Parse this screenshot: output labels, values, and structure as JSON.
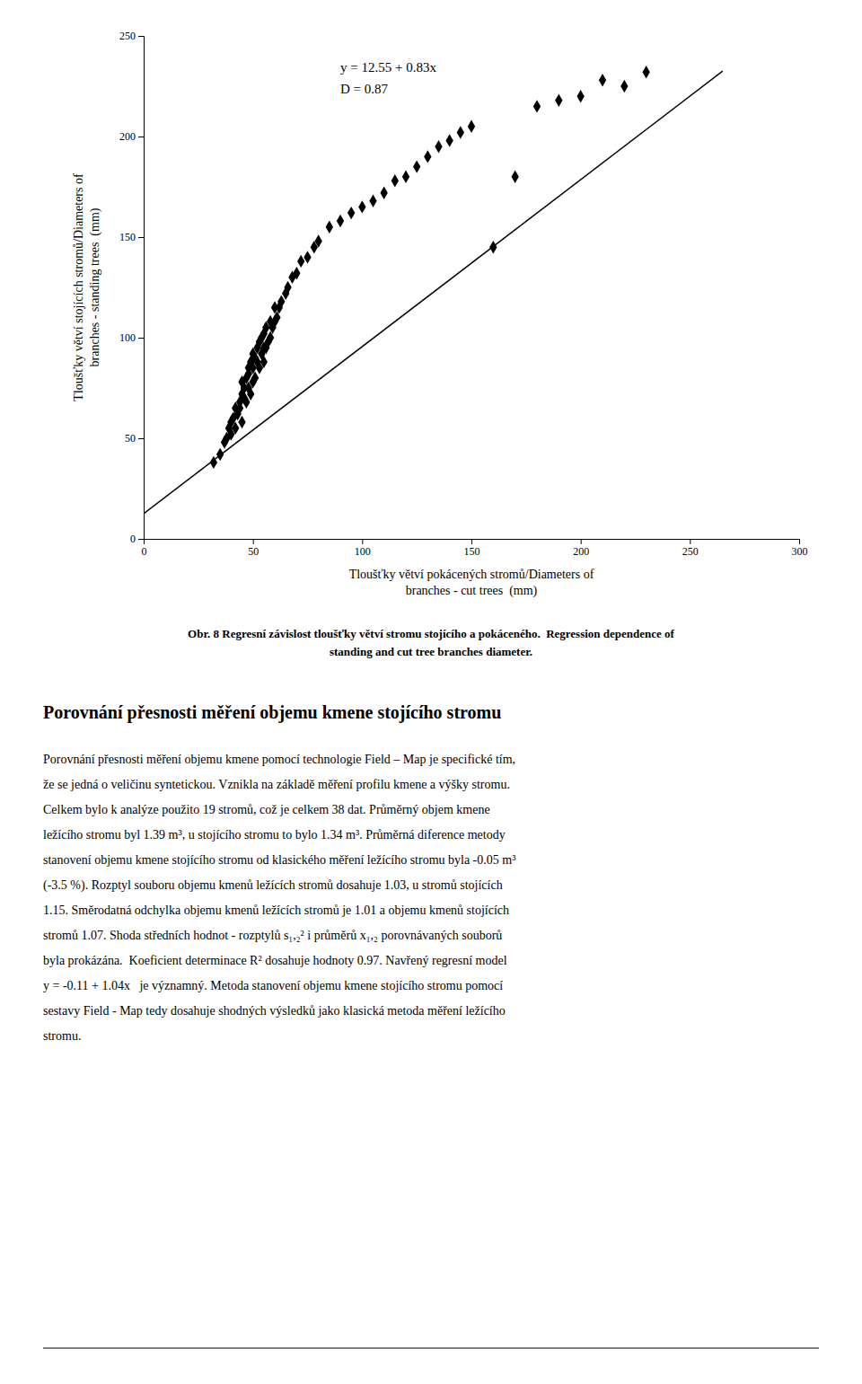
{
  "chart_data": {
    "type": "scatter",
    "caption": [
      "Obr. 8 Regresní závislost tloušťky větví stromu stojícího a pokáceného.  Regression dependence of",
      "standing and cut tree branches diameter."
    ],
    "xlabel": [
      "Tloušťky větví pokácených stromů/Diameters of",
      "branches - cut trees  (mm)"
    ],
    "ylabel": [
      "Tloušťky větví stojících stromů/Diameters of",
      "branches - standing trees  (mm)"
    ],
    "annotations": [
      "y = 12.55 + 0.83x",
      "D = 0.87"
    ],
    "series": [
      {
        "type": "scatter",
        "marker": "diamond",
        "color": "#000000",
        "x": [
          32,
          35,
          37,
          38,
          39,
          40,
          40,
          41,
          42,
          42,
          43,
          44,
          44,
          45,
          45,
          45,
          46,
          46,
          47,
          47,
          48,
          48,
          48,
          49,
          49,
          50,
          50,
          50,
          51,
          51,
          52,
          52,
          53,
          53,
          54,
          54,
          55,
          55,
          55,
          56,
          56,
          57,
          58,
          58,
          59,
          60,
          60,
          61,
          62,
          63,
          65,
          66,
          68,
          70,
          72,
          75,
          78,
          80,
          85,
          90,
          95,
          100,
          105,
          110,
          115,
          120,
          125,
          130,
          135,
          140,
          145,
          150,
          160,
          170,
          180,
          190,
          200,
          210,
          220,
          230
        ],
        "values": [
          38,
          42,
          48,
          50,
          55,
          52,
          58,
          60,
          55,
          65,
          62,
          68,
          65,
          58,
          72,
          78,
          70,
          75,
          68,
          80,
          75,
          82,
          85,
          72,
          88,
          78,
          85,
          92,
          80,
          90,
          88,
          95,
          85,
          98,
          92,
          100,
          88,
          95,
          102,
          95,
          105,
          98,
          100,
          108,
          105,
          108,
          115,
          110,
          115,
          118,
          122,
          125,
          130,
          132,
          138,
          140,
          145,
          148,
          155,
          158,
          162,
          165,
          168,
          172,
          178,
          180,
          185,
          190,
          195,
          198,
          202,
          205,
          145,
          180,
          215,
          218,
          220,
          228,
          225,
          232
        ]
      },
      {
        "type": "line",
        "line_style": "solid",
        "color": "#000000",
        "x": [
          0,
          265
        ],
        "values": [
          12.55,
          232.5
        ]
      }
    ],
    "xlim": [
      0,
      300
    ],
    "ylim": [
      0,
      250
    ],
    "xticks": [
      0,
      50,
      100,
      150,
      200,
      250,
      300
    ],
    "yticks": [
      0,
      50,
      100,
      150,
      200,
      250
    ],
    "grid": false
  },
  "page_text": {
    "section_title": "Porovnání přesnosti měření objemu kmene stojícího stromu",
    "body_lines": [
      "Porovnání přesnosti měření objemu kmene pomocí technologie Field – Map je specifické tím,",
      "že se jedná o veličinu syntetickou. Vznikla na základě měření profilu kmene a výšky stromu.",
      "Celkem bylo k analýze použito 19 stromů, což je celkem 38 dat. Průměrný objem kmene",
      "ležícího stromu byl 1.39 m³, u stojícího stromu to bylo 1.34 m³. Průměrná diference metody",
      "stanovení objemu kmene stojícího stromu od klasického měření ležícího stromu byla -0.05 m³",
      "(-3.5 %). Rozptyl souboru objemu kmenů ležících stromů dosahuje 1.03, u stromů stojících",
      "1.15. Směrodatná odchylka objemu kmenů ležících stromů je 1.01 a objemu kmenů stojících",
      "stromů 1.07. Shoda středních hodnot - rozptylů s₁,₂² i průměrů x₁,₂ porovnávaných souborů",
      "byla prokázána.  Koeficient determinace R² dosahuje hodnoty 0.97. Navřený regresní model",
      "y = -0.11 + 1.04x   je významný. Metoda stanovení objemu kmene stojícího stromu pomocí",
      "sestavy Field - Map tedy dosahuje shodných výsledků jako klasická metoda měření ležícího",
      "stromu."
    ]
  }
}
